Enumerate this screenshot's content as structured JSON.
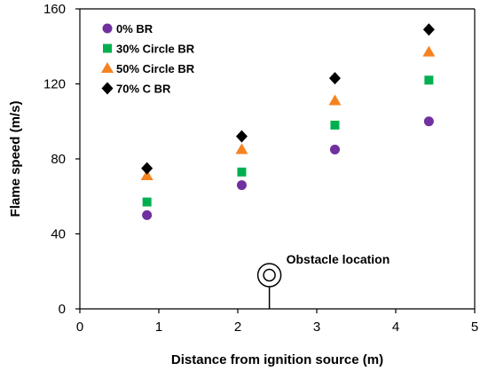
{
  "chart_data": {
    "type": "scatter",
    "xlabel": "Distance from ignition source (m)",
    "ylabel": "Flame speed (m/s)",
    "xlim": [
      0,
      5
    ],
    "ylim": [
      0,
      160
    ],
    "x_ticks": [
      0,
      1,
      2,
      3,
      4,
      5
    ],
    "y_ticks": [
      0,
      40,
      80,
      120,
      160
    ],
    "grid": false,
    "legend_position": "top-left",
    "series": [
      {
        "name": "0% BR",
        "marker": "circle",
        "color": "#7030A0",
        "x": [
          0.85,
          2.05,
          3.23,
          4.42
        ],
        "y": [
          50,
          66,
          85,
          100
        ]
      },
      {
        "name": "30% Circle BR",
        "marker": "square",
        "color": "#00B050",
        "x": [
          0.85,
          2.05,
          3.23,
          4.42
        ],
        "y": [
          57,
          73,
          98,
          122
        ]
      },
      {
        "name": "50% Circle BR",
        "marker": "triangle",
        "color": "#F58220",
        "x": [
          0.85,
          2.05,
          3.23,
          4.42
        ],
        "y": [
          71,
          85,
          111,
          137
        ]
      },
      {
        "name": "70% C BR",
        "marker": "diamond",
        "color": "#000000",
        "x": [
          0.85,
          2.05,
          3.23,
          4.42
        ],
        "y": [
          75,
          92,
          123,
          149
        ]
      }
    ],
    "annotations": [
      {
        "text": "Obstacle location",
        "x": 2.4,
        "y": 18,
        "symbol": "concentric-circle-on-post"
      }
    ]
  }
}
